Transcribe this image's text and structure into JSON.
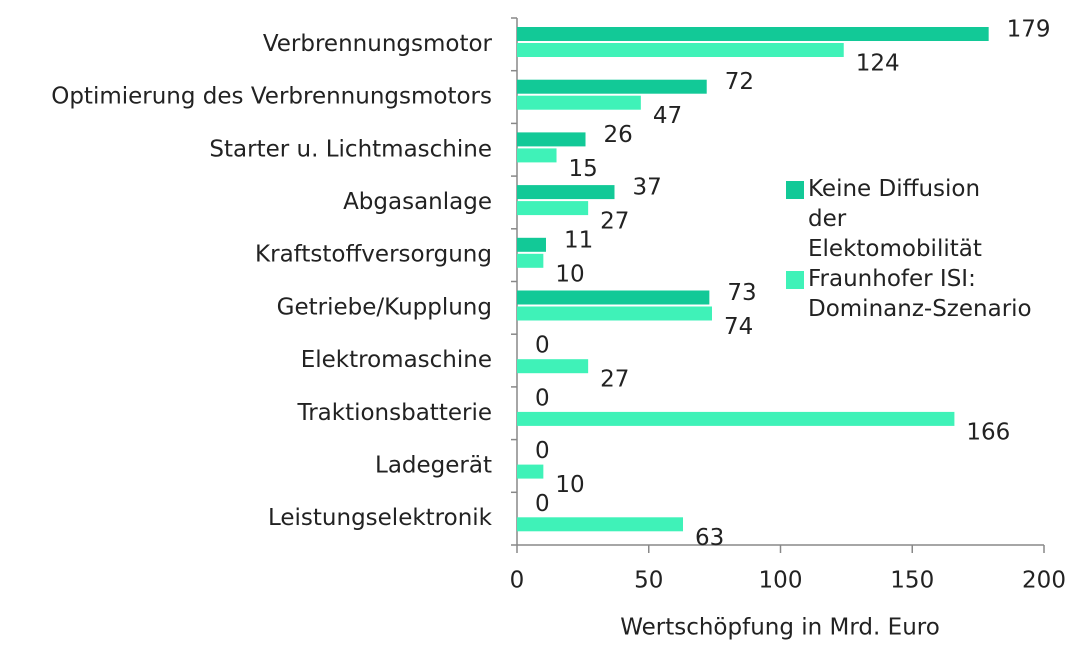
{
  "chart_data": {
    "type": "barh",
    "categories": [
      "Verbrennungsmotor",
      "Optimierung des Verbrennungsmotors",
      "Starter u. Lichtmaschine",
      "Abgasanlage",
      "Kraftstoffversorgung",
      "Getriebe/Kupplung",
      "Elektromaschine",
      "Traktionsbatterie",
      "Ladegerät",
      "Leistungselektronik"
    ],
    "series": [
      {
        "name": "Keine Diffusion der Elektomobilität",
        "color": "#12c997",
        "values": [
          179,
          72,
          26,
          37,
          11,
          73,
          0,
          0,
          0,
          0
        ]
      },
      {
        "name": "Fraunhofer ISI: Dominanz-Szenario",
        "color": "#3ff2b8",
        "values": [
          124,
          47,
          15,
          27,
          10,
          74,
          27,
          166,
          10,
          63
        ]
      }
    ],
    "xlabel": "Wertschöpfung in Mrd. Euro",
    "xlim": [
      0,
      200
    ],
    "xticks": [
      0,
      50,
      100,
      150,
      200
    ]
  }
}
